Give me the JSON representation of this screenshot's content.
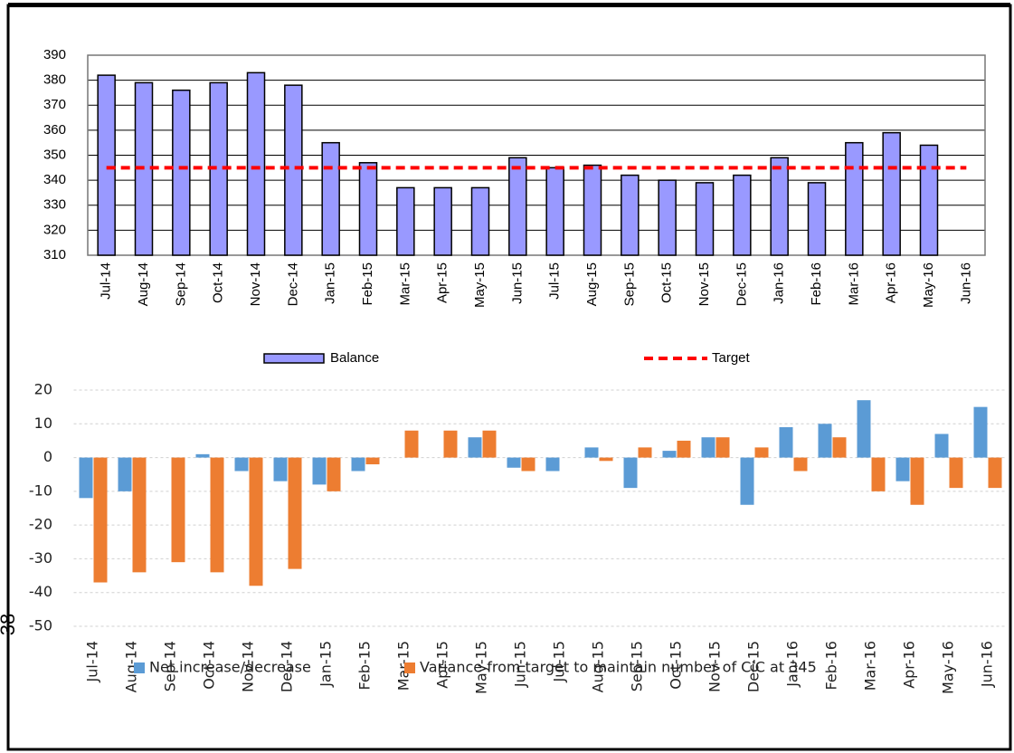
{
  "side_text": "38",
  "chart_data": [
    {
      "type": "bar",
      "categories": [
        "Jul-14",
        "Aug-14",
        "Sep-14",
        "Oct-14",
        "Nov-14",
        "Dec-14",
        "Jan-15",
        "Feb-15",
        "Mar-15",
        "Apr-15",
        "May-15",
        "Jun-15",
        "Jul-15",
        "Aug-15",
        "Sep-15",
        "Oct-15",
        "Nov-15",
        "Dec-15",
        "Jan-16",
        "Feb-16",
        "Mar-16",
        "Apr-16",
        "May-16",
        "Jun-16"
      ],
      "series": [
        {
          "name": "Balance",
          "type": "bar",
          "color": "#9999ff",
          "values": [
            382,
            379,
            376,
            379,
            383,
            378,
            355,
            347,
            337,
            337,
            337,
            349,
            345,
            346,
            342,
            340,
            339,
            342,
            349,
            339,
            355,
            359,
            354,
            null
          ]
        },
        {
          "name": "Target",
          "type": "line",
          "color": "#ff0000",
          "values": [
            345,
            345,
            345,
            345,
            345,
            345,
            345,
            345,
            345,
            345,
            345,
            345,
            345,
            345,
            345,
            345,
            345,
            345,
            345,
            345,
            345,
            345,
            345,
            345
          ]
        }
      ],
      "ylim": [
        310,
        390
      ],
      "yticks": [
        310,
        320,
        330,
        340,
        350,
        360,
        370,
        380,
        390
      ],
      "grid": true,
      "legend": "bottom"
    },
    {
      "type": "bar",
      "categories": [
        "Jul-14",
        "Aug-14",
        "Sep-14",
        "Oct-14",
        "Nov-14",
        "Dec-14",
        "Jan-15",
        "Feb-15",
        "Mar-15",
        "Apr-15",
        "May-15",
        "Jun-15",
        "Jul-15",
        "Aug-15",
        "Sep-15",
        "Oct-15",
        "Nov-15",
        "Dec-15",
        "Jan-16",
        "Feb-16",
        "Mar-16",
        "Apr-16",
        "May-16",
        "Jun-16"
      ],
      "series": [
        {
          "name": "Net increase/decrease",
          "type": "bar",
          "color": "#5b9bd5",
          "values": [
            -12,
            -10,
            0,
            1,
            -4,
            -7,
            -8,
            -4,
            0,
            0,
            6,
            -3,
            -4,
            3,
            -9,
            2,
            6,
            -14,
            9,
            10,
            17,
            -7,
            7,
            15
          ]
        },
        {
          "name": "Variance from target to maintain number of CiC at 345",
          "type": "bar",
          "color": "#ed7d31",
          "values": [
            -37,
            -34,
            -31,
            -34,
            -38,
            -33,
            -10,
            -2,
            8,
            8,
            8,
            -4,
            0,
            -1,
            3,
            5,
            6,
            3,
            -4,
            6,
            -10,
            -14,
            -9,
            -9
          ]
        }
      ],
      "ylim": [
        -50,
        20
      ],
      "yticks": [
        -50,
        -40,
        -30,
        -20,
        -10,
        0,
        10,
        20
      ],
      "grid": true,
      "legend": "bottom"
    }
  ]
}
